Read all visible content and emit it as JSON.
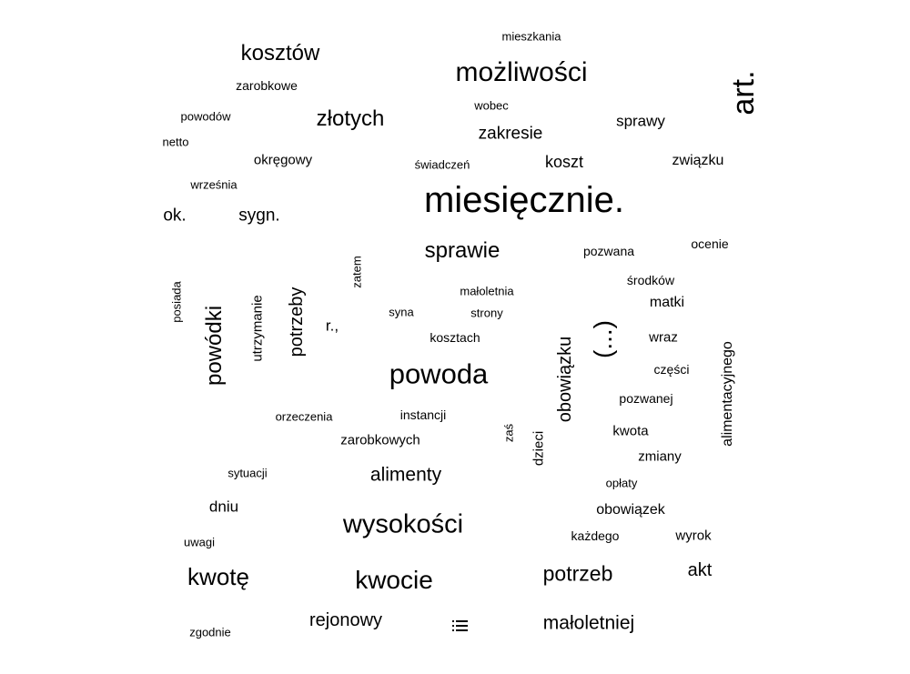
{
  "words": [
    "mieszkania",
    "kosztów",
    "możliwości",
    "art.",
    "zarobkowe",
    "wobec",
    "złotych",
    "sprawy",
    "powodów",
    "zakresie",
    "netto",
    "okręgowy",
    "świadczeń",
    "koszt",
    "związku",
    "września",
    "miesięcznie.",
    "ok.",
    "sygn.",
    "sprawie",
    "pozwana",
    "ocenie",
    "zatem",
    "środków",
    "posiada",
    "małoletnia",
    "matki",
    "powódki",
    "utrzymanie",
    "potrzeby",
    "syna",
    "strony",
    "r.,",
    "(...)",
    "kosztach",
    "wraz",
    "obowiązku",
    "alimentacyjnego",
    "części",
    "powoda",
    "pozwanej",
    "orzeczenia",
    "instancji",
    "kwota",
    "zaś",
    "zarobkowych",
    "dzieci",
    "zmiany",
    "sytuacji",
    "alimenty",
    "opłaty",
    "dniu",
    "obowiązek",
    "wysokości",
    "każdego",
    "wyrok",
    "uwagi",
    "akt",
    "kwotę",
    "potrzeb",
    "kwocie",
    "rejonowy",
    "małoletniej",
    "zgodnie"
  ],
  "icon": "list-icon"
}
